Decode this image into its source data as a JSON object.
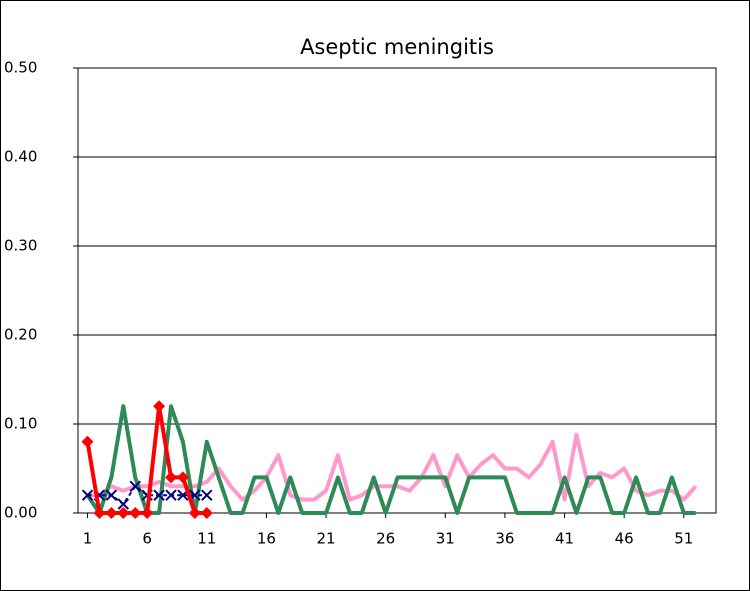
{
  "chart_data": {
    "type": "line",
    "title": "Aseptic meningitis",
    "xlim": [
      0.2,
      53.7
    ],
    "xticks": [
      1,
      6,
      11,
      16,
      21,
      26,
      31,
      36,
      41,
      46,
      51
    ],
    "ylim": [
      0,
      0.5
    ],
    "yticks": [
      {
        "value": 0,
        "label": "0.00"
      },
      {
        "value": 0.1,
        "label": "0.10"
      },
      {
        "value": 0.2,
        "label": "0.20"
      },
      {
        "value": 0.3,
        "label": "0.30"
      },
      {
        "value": 0.4,
        "label": "0.40"
      },
      {
        "value": 0.5,
        "label": "0.50"
      }
    ],
    "grid": true,
    "series": [
      {
        "color": "#ff99cc",
        "marker": "none",
        "x": [
          1,
          2,
          3,
          4,
          5,
          6,
          7,
          8,
          9,
          10,
          11,
          12,
          13,
          14,
          15,
          16,
          17,
          18,
          19,
          20,
          21,
          22,
          23,
          24,
          25,
          26,
          27,
          28,
          29,
          30,
          31,
          32,
          33,
          34,
          35,
          36,
          37,
          38,
          39,
          40,
          41,
          42,
          43,
          44,
          45,
          46,
          47,
          48,
          49,
          50,
          51,
          52
        ],
        "values": [
          0.02,
          0.02,
          0.03,
          0.025,
          0.03,
          0.03,
          0.035,
          0.03,
          0.03,
          0.03,
          0.035,
          0.05,
          0.03,
          0.015,
          0.025,
          0.04,
          0.065,
          0.02,
          0.015,
          0.015,
          0.025,
          0.065,
          0.015,
          0.02,
          0.03,
          0.03,
          0.03,
          0.025,
          0.04,
          0.065,
          0.03,
          0.065,
          0.04,
          0.055,
          0.065,
          0.05,
          0.05,
          0.04,
          0.055,
          0.08,
          0.015,
          0.088,
          0.03,
          0.045,
          0.04,
          0.05,
          0.025,
          0.02,
          0.025,
          0.025,
          0.015,
          0.03
        ]
      },
      {
        "color": "#2e8b57",
        "marker": "none",
        "x": [
          1,
          2,
          3,
          4,
          5,
          6,
          7,
          8,
          9,
          10,
          11,
          12,
          13,
          14,
          15,
          16,
          17,
          18,
          19,
          20,
          21,
          22,
          23,
          24,
          25,
          26,
          27,
          28,
          29,
          30,
          31,
          32,
          33,
          34,
          35,
          36,
          37,
          38,
          39,
          40,
          41,
          42,
          43,
          44,
          45,
          46,
          47,
          48,
          49,
          50,
          51,
          52
        ],
        "values": [
          0.02,
          0,
          0.04,
          0.12,
          0.04,
          0,
          0,
          0.12,
          0.08,
          0,
          0.08,
          0.04,
          0,
          0,
          0.04,
          0.04,
          0,
          0.04,
          0,
          0,
          0,
          0.04,
          0,
          0,
          0.04,
          0,
          0.04,
          0.04,
          0.04,
          0.04,
          0.04,
          0,
          0.04,
          0.04,
          0.04,
          0.04,
          0,
          0,
          0,
          0,
          0.04,
          0,
          0.04,
          0.04,
          0,
          0,
          0.04,
          0,
          0,
          0.04,
          0,
          0
        ]
      },
      {
        "color": "#000080",
        "marker": "x",
        "dashed": true,
        "x": [
          1,
          2,
          3,
          4,
          5,
          6,
          7,
          8,
          9,
          10,
          11
        ],
        "values": [
          0.02,
          0.02,
          0.02,
          0.01,
          0.03,
          0.02,
          0.02,
          0.02,
          0.02,
          0.02,
          0.02
        ]
      },
      {
        "color": "#ff0000",
        "marker": "diamond",
        "x": [
          1,
          2,
          3,
          4,
          5,
          6,
          7,
          8,
          9,
          10,
          11
        ],
        "values": [
          0.08,
          0,
          0,
          0,
          0,
          0,
          0.12,
          0.04,
          0.04,
          0,
          0
        ]
      }
    ]
  }
}
